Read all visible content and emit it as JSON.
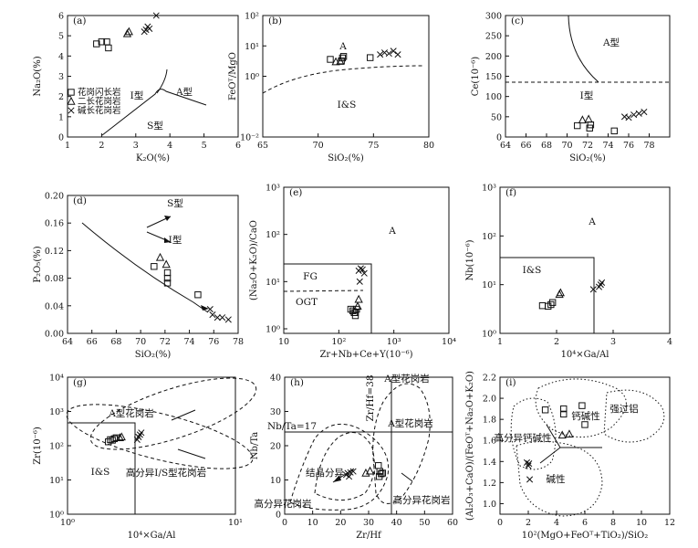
{
  "chart_data": [
    {
      "id": "a",
      "panel_label": "(a)",
      "type": "scatter",
      "xlabel": "K₂O(%)",
      "ylabel": "Na₂O(%)",
      "xlim": [
        1,
        6
      ],
      "ylim": [
        0,
        6
      ],
      "xticks": [
        1,
        2,
        3,
        4,
        5,
        6
      ],
      "yticks": [
        0,
        1,
        2,
        3,
        4,
        5,
        6
      ],
      "field_labels": [
        "I型",
        "A型",
        "S型"
      ],
      "legend": [
        "花岗闪长岩",
        "二长花岗岩",
        "碱长花岗岩"
      ],
      "series": [
        {
          "name": "花岗闪长岩",
          "marker": "square",
          "points": [
            [
              1.85,
              4.6
            ],
            [
              2.0,
              4.7
            ],
            [
              2.15,
              4.7
            ],
            [
              2.2,
              4.4
            ]
          ]
        },
        {
          "name": "二长花岗岩",
          "marker": "triangle",
          "points": [
            [
              2.75,
              5.1
            ],
            [
              2.8,
              5.2
            ]
          ]
        },
        {
          "name": "碱长花岗岩",
          "marker": "cross",
          "points": [
            [
              3.25,
              5.2
            ],
            [
              3.3,
              5.3
            ],
            [
              3.35,
              5.45
            ],
            [
              3.4,
              5.35
            ],
            [
              3.6,
              6.0
            ]
          ]
        }
      ]
    },
    {
      "id": "b",
      "panel_label": "(b)",
      "type": "scatter",
      "xlabel": "SiO₂(%)",
      "ylabel": "FeOᵀ/MgO",
      "xlim": [
        65,
        80
      ],
      "ylim": [
        0.01,
        100
      ],
      "ylog": true,
      "xticks": [
        65,
        70,
        75,
        80
      ],
      "yticks": [
        0.01,
        1,
        10,
        100
      ],
      "ytick_labels": [
        "10⁻²",
        "10⁰",
        "10¹",
        "10²"
      ],
      "field_labels": [
        "A",
        "I&S"
      ],
      "series": [
        {
          "name": "花岗闪长岩",
          "marker": "square",
          "points": [
            [
              71.1,
              3.6
            ],
            [
              72.1,
              3.2
            ],
            [
              72.2,
              4.0
            ],
            [
              72.3,
              4.5
            ],
            [
              74.7,
              4.1
            ]
          ]
        },
        {
          "name": "二长花岗岩",
          "marker": "triangle",
          "points": [
            [
              71.6,
              3.0
            ],
            [
              72.0,
              3.1
            ]
          ]
        },
        {
          "name": "碱长花岗岩",
          "marker": "cross",
          "points": [
            [
              75.6,
              5.2
            ],
            [
              76.0,
              6.0
            ],
            [
              76.4,
              5.6
            ],
            [
              76.8,
              6.8
            ],
            [
              77.2,
              5.2
            ]
          ]
        }
      ]
    },
    {
      "id": "c",
      "panel_label": "(c)",
      "type": "scatter",
      "xlabel": "SiO₂(%)",
      "ylabel": "Ce(10⁻⁶)",
      "xlim": [
        64,
        80
      ],
      "ylim": [
        0,
        300
      ],
      "xticks": [
        64,
        66,
        68,
        70,
        72,
        74,
        76,
        78
      ],
      "yticks": [
        0,
        50,
        100,
        150,
        200,
        250,
        300
      ],
      "field_labels": [
        "A型",
        "I型"
      ],
      "series": [
        {
          "name": "花岗闪长岩",
          "marker": "square",
          "points": [
            [
              71.0,
              28
            ],
            [
              72.2,
              22
            ],
            [
              72.3,
              30
            ],
            [
              74.6,
              15
            ]
          ]
        },
        {
          "name": "二长花岗岩",
          "marker": "triangle",
          "points": [
            [
              71.5,
              42
            ],
            [
              72.1,
              44
            ]
          ]
        },
        {
          "name": "碱长花岗岩",
          "marker": "cross",
          "points": [
            [
              75.6,
              50
            ],
            [
              76.0,
              48
            ],
            [
              76.5,
              55
            ],
            [
              77.0,
              58
            ],
            [
              77.5,
              62
            ]
          ]
        }
      ]
    },
    {
      "id": "d",
      "panel_label": "(d)",
      "type": "scatter",
      "xlabel": "SiO₂(%)",
      "ylabel": "P₂O₅(%)",
      "xlim": [
        64,
        78
      ],
      "ylim": [
        0,
        0.2
      ],
      "xticks": [
        64,
        66,
        68,
        70,
        72,
        74,
        76,
        78
      ],
      "yticks": [
        0,
        0.04,
        0.08,
        0.12,
        0.16,
        0.2
      ],
      "ytick_labels": [
        "0.00",
        "0.04",
        "0.08",
        "0.12",
        "0.16",
        "0.20"
      ],
      "field_labels": [
        "S型",
        "I型"
      ],
      "series": [
        {
          "name": "花岗闪长岩",
          "marker": "square",
          "points": [
            [
              71.1,
              0.097
            ],
            [
              72.2,
              0.088
            ],
            [
              72.2,
              0.08
            ],
            [
              72.2,
              0.073
            ],
            [
              74.7,
              0.056
            ]
          ]
        },
        {
          "name": "二长花岗岩",
          "marker": "triangle",
          "points": [
            [
              71.6,
              0.11
            ],
            [
              72.1,
              0.1
            ]
          ]
        },
        {
          "name": "碱长花岗岩",
          "marker": "cross",
          "points": [
            [
              75.7,
              0.035
            ],
            [
              75.9,
              0.027
            ],
            [
              76.3,
              0.023
            ],
            [
              76.7,
              0.023
            ],
            [
              77.2,
              0.02
            ]
          ]
        }
      ]
    },
    {
      "id": "e",
      "panel_label": "(e)",
      "type": "scatter",
      "xlabel": "Zr+Nb+Ce+Y(10⁻⁶)",
      "ylabel": "(Na₂O+K₂O)/CaO",
      "xlim": [
        10,
        10000
      ],
      "ylim": [
        0.8,
        1000
      ],
      "xlog": true,
      "ylog": true,
      "xticks": [
        10,
        100,
        1000,
        10000
      ],
      "xtick_labels": [
        "10",
        "10²",
        "10³",
        "10⁴"
      ],
      "yticks": [
        1,
        10,
        100,
        1000
      ],
      "ytick_labels": [
        "10⁰",
        "10¹",
        "10²",
        "10³"
      ],
      "field_labels": [
        "A",
        "FG",
        "OGT"
      ],
      "series": [
        {
          "name": "花岗闪长岩",
          "marker": "square",
          "points": [
            [
              165,
              2.6
            ],
            [
              180,
              2.4
            ],
            [
              190,
              2.2
            ],
            [
              200,
              1.9
            ],
            [
              210,
              2.6
            ],
            [
              200,
              2.2
            ]
          ]
        },
        {
          "name": "二长花岗岩",
          "marker": "triangle",
          "points": [
            [
              220,
              3.0
            ],
            [
              230,
              4.2
            ]
          ]
        },
        {
          "name": "碱长花岗岩",
          "marker": "cross",
          "points": [
            [
              230,
              17
            ],
            [
              250,
              19
            ],
            [
              270,
              18
            ],
            [
              290,
              15
            ],
            [
              240,
              10
            ]
          ]
        }
      ]
    },
    {
      "id": "f",
      "panel_label": "(f)",
      "type": "scatter",
      "xlabel": "10⁴×Ga/Al",
      "ylabel": "Nb(10⁻⁶)",
      "xlim": [
        1,
        4
      ],
      "ylim": [
        1,
        1000
      ],
      "ylog": true,
      "xticks": [
        1,
        2,
        3,
        4
      ],
      "yticks": [
        1,
        10,
        100,
        1000
      ],
      "ytick_labels": [
        "10⁰",
        "10¹",
        "10²",
        "10³"
      ],
      "field_labels": [
        "A",
        "I&S"
      ],
      "series": [
        {
          "name": "花岗闪长岩",
          "marker": "square",
          "points": [
            [
              1.75,
              3.7
            ],
            [
              1.85,
              3.6
            ],
            [
              1.9,
              3.9
            ],
            [
              1.93,
              4.3
            ]
          ]
        },
        {
          "name": "二长花岗岩",
          "marker": "triangle",
          "points": [
            [
              2.07,
              6.8
            ],
            [
              2.05,
              6.3
            ]
          ]
        },
        {
          "name": "碱长花岗岩",
          "marker": "cross",
          "points": [
            [
              2.65,
              8.0
            ],
            [
              2.75,
              9.0
            ],
            [
              2.78,
              10.0
            ],
            [
              2.8,
              11.0
            ]
          ]
        }
      ]
    },
    {
      "id": "g",
      "panel_label": "(g)",
      "type": "scatter",
      "xlabel": "10⁴×Ga/Al",
      "ylabel": "Zr(10⁻⁶)",
      "xlim": [
        1,
        10
      ],
      "ylim": [
        1,
        10000
      ],
      "xlog": true,
      "ylog": true,
      "xticks": [
        1,
        10
      ],
      "xtick_labels": [
        "10⁰",
        "10¹"
      ],
      "yticks": [
        1,
        10,
        100,
        1000,
        10000
      ],
      "ytick_labels": [
        "10⁰",
        "10¹",
        "10²",
        "10³",
        "10⁴"
      ],
      "field_labels": [
        "A型花岗岩",
        "高分异I/S型花岗岩",
        "I&S"
      ],
      "series": [
        {
          "name": "花岗闪长岩",
          "marker": "square",
          "points": [
            [
              1.75,
              130
            ],
            [
              1.85,
              145
            ],
            [
              1.9,
              160
            ],
            [
              1.95,
              170
            ],
            [
              1.8,
              150
            ]
          ]
        },
        {
          "name": "二长花岗岩",
          "marker": "triangle",
          "points": [
            [
              2.05,
              170
            ],
            [
              2.1,
              180
            ]
          ]
        },
        {
          "name": "碱长花岗岩",
          "marker": "cross",
          "points": [
            [
              2.6,
              150
            ],
            [
              2.65,
              180
            ],
            [
              2.7,
              210
            ],
            [
              2.75,
              240
            ]
          ]
        }
      ]
    },
    {
      "id": "h",
      "panel_label": "(h)",
      "type": "scatter",
      "xlabel": "Zr/Hf",
      "ylabel": "Nb/Ta",
      "xlim": [
        0,
        60
      ],
      "ylim": [
        0,
        40
      ],
      "xticks": [
        0,
        10,
        20,
        30,
        40,
        50,
        60
      ],
      "yticks": [
        0,
        10,
        20,
        30,
        40
      ],
      "field_labels": [
        "A型花岗岩",
        "A型花岗岩",
        "结晶分异",
        "高分异花岗岩",
        "高分异花岗岩",
        "Nb/Ta=17",
        "Zr/Hf=38"
      ],
      "series": [
        {
          "name": "花岗闪长岩",
          "marker": "square",
          "points": [
            [
              33.5,
              14.2
            ],
            [
              34,
              12.5
            ],
            [
              34.5,
              11.8
            ],
            [
              33.8,
              11.0
            ],
            [
              35,
              12.0
            ]
          ]
        },
        {
          "name": "二长花岗岩",
          "marker": "triangle",
          "points": [
            [
              29,
              12.0
            ],
            [
              30.5,
              12.6
            ]
          ]
        },
        {
          "name": "碱长花岗岩",
          "marker": "cross",
          "points": [
            [
              22,
              11.5
            ],
            [
              22.5,
              12.0
            ],
            [
              23,
              11.0
            ],
            [
              24.5,
              12.5
            ],
            [
              23.5,
              12.2
            ]
          ]
        }
      ]
    },
    {
      "id": "i",
      "panel_label": "(i)",
      "type": "scatter",
      "xlabel": "10²(MgO+FeOᵀ+TiO₂)/SiO₂",
      "ylabel": "(Al₂O₃+CaO)/(FeOᵀ+Na₂O+K₂O)",
      "xlim": [
        0,
        12
      ],
      "ylim": [
        0.9,
        2.2
      ],
      "xticks": [
        0,
        2,
        4,
        6,
        8,
        10,
        12
      ],
      "yticks": [
        1.0,
        1.2,
        1.4,
        1.6,
        1.8,
        2.0,
        2.2
      ],
      "ytick_labels": [
        "1.0",
        "1.2",
        "1.4",
        "1.6",
        "1.8",
        "2.0",
        "2.2"
      ],
      "field_labels": [
        "钙碱性",
        "强过铝",
        "高分异钙碱性",
        "碱性"
      ],
      "series": [
        {
          "name": "花岗闪长岩",
          "marker": "square",
          "points": [
            [
              3.2,
              1.89
            ],
            [
              4.5,
              1.9
            ],
            [
              4.5,
              1.85
            ],
            [
              5.8,
              1.93
            ],
            [
              6.0,
              1.75
            ]
          ]
        },
        {
          "name": "二长花岗岩",
          "marker": "triangle",
          "points": [
            [
              4.4,
              1.65
            ],
            [
              4.9,
              1.66
            ]
          ]
        },
        {
          "name": "碱长花岗岩",
          "marker": "cross",
          "points": [
            [
              1.9,
              1.39
            ],
            [
              2.0,
              1.36
            ],
            [
              2.05,
              1.38
            ],
            [
              2.1,
              1.23
            ]
          ]
        }
      ]
    }
  ]
}
